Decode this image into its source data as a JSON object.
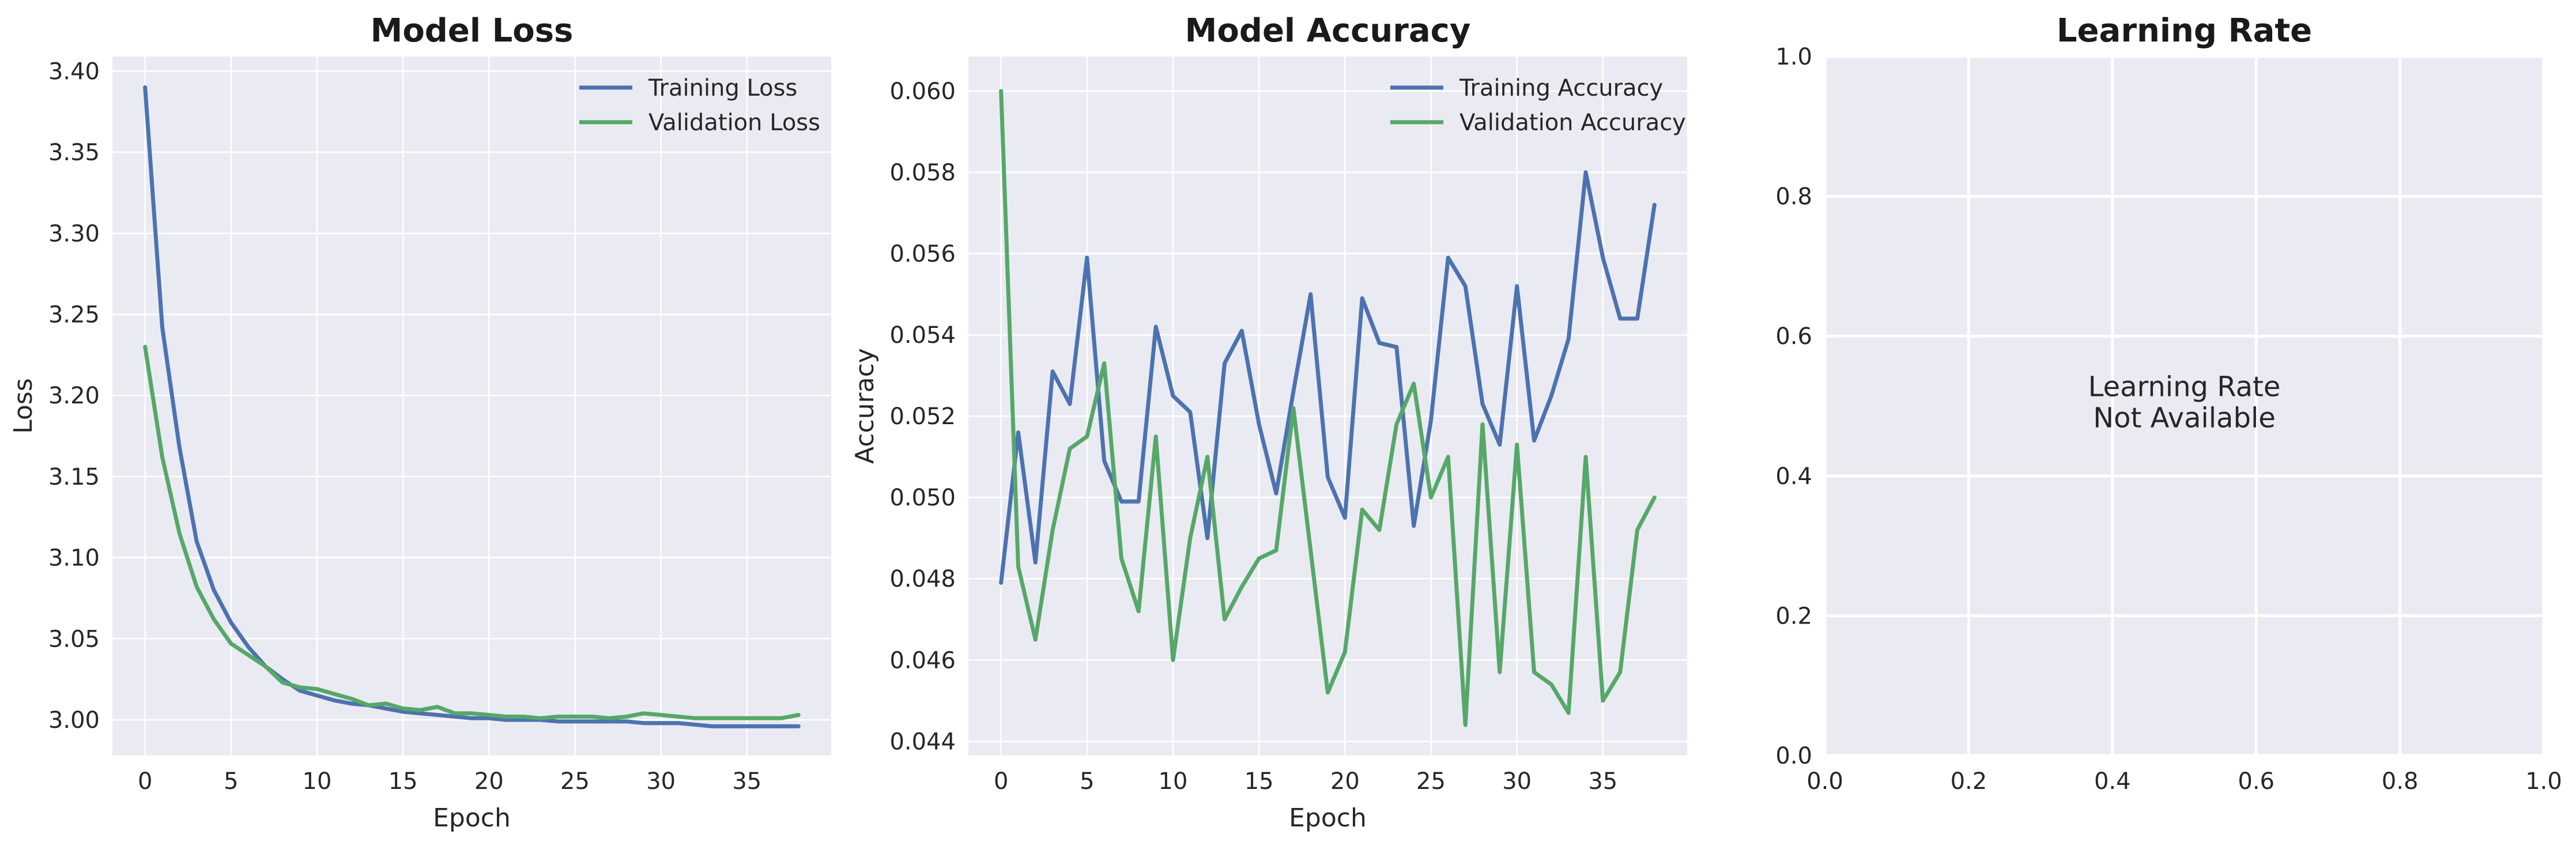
{
  "colors": {
    "axes_bg": "#EAEAF2",
    "grid": "#FFFFFF",
    "training": "#4C72B0",
    "validation": "#55A868"
  },
  "chart_data": [
    {
      "type": "line",
      "title": "Model Loss",
      "xlabel": "Epoch",
      "ylabel": "Loss",
      "xlim": [
        -1.9,
        39.9
      ],
      "ylim": [
        2.978,
        3.409
      ],
      "xticks": [
        0,
        5,
        10,
        15,
        20,
        25,
        30,
        35
      ],
      "yticks": [
        3.0,
        3.05,
        3.1,
        3.15,
        3.2,
        3.25,
        3.3,
        3.35,
        3.4
      ],
      "ytick_labels": [
        "3.00",
        "3.05",
        "3.10",
        "3.15",
        "3.20",
        "3.25",
        "3.30",
        "3.35",
        "3.40"
      ],
      "grid": true,
      "legend": "top-right",
      "series": [
        {
          "name": "Training Loss",
          "color": "#4C72B0",
          "values": [
            3.39,
            3.242,
            3.168,
            3.11,
            3.08,
            3.06,
            3.045,
            3.033,
            3.025,
            3.018,
            3.015,
            3.012,
            3.01,
            3.009,
            3.007,
            3.005,
            3.004,
            3.003,
            3.002,
            3.001,
            3.001,
            3.0,
            3.0,
            3.0,
            2.999,
            2.999,
            2.999,
            2.999,
            2.999,
            2.998,
            2.998,
            2.998,
            2.997,
            2.996,
            2.996,
            2.996,
            2.996,
            2.996,
            2.996
          ]
        },
        {
          "name": "Validation Loss",
          "color": "#55A868",
          "values": [
            3.23,
            3.162,
            3.115,
            3.082,
            3.062,
            3.047,
            3.04,
            3.033,
            3.023,
            3.02,
            3.019,
            3.016,
            3.013,
            3.009,
            3.01,
            3.007,
            3.006,
            3.008,
            3.004,
            3.004,
            3.003,
            3.002,
            3.002,
            3.001,
            3.002,
            3.002,
            3.002,
            3.001,
            3.002,
            3.004,
            3.003,
            3.002,
            3.001,
            3.001,
            3.001,
            3.001,
            3.001,
            3.001,
            3.003
          ]
        }
      ]
    },
    {
      "type": "line",
      "title": "Model Accuracy",
      "xlabel": "Epoch",
      "ylabel": "Accuracy",
      "xlim": [
        -1.9,
        39.9
      ],
      "ylim": [
        0.04365,
        0.06085
      ],
      "xticks": [
        0,
        5,
        10,
        15,
        20,
        25,
        30,
        35
      ],
      "yticks": [
        0.044,
        0.046,
        0.048,
        0.05,
        0.052,
        0.054,
        0.056,
        0.058,
        0.06
      ],
      "ytick_labels": [
        "0.044",
        "0.046",
        "0.048",
        "0.050",
        "0.052",
        "0.054",
        "0.056",
        "0.058",
        "0.060"
      ],
      "grid": true,
      "legend": "top-right",
      "series": [
        {
          "name": "Training Accuracy",
          "color": "#4C72B0",
          "values": [
            0.0479,
            0.0516,
            0.0484,
            0.0531,
            0.0523,
            0.0559,
            0.0509,
            0.0499,
            0.0499,
            0.0542,
            0.0525,
            0.0521,
            0.049,
            0.0533,
            0.0541,
            0.0518,
            0.0501,
            0.0526,
            0.055,
            0.0505,
            0.0495,
            0.0549,
            0.0538,
            0.0537,
            0.0493,
            0.0519,
            0.0559,
            0.0552,
            0.0523,
            0.0513,
            0.0552,
            0.0514,
            0.0525,
            0.0539,
            0.058,
            0.0559,
            0.0544,
            0.0544,
            0.0572
          ]
        },
        {
          "name": "Validation Accuracy",
          "color": "#55A868",
          "values": [
            0.06,
            0.0483,
            0.0465,
            0.0492,
            0.0512,
            0.0515,
            0.0533,
            0.0485,
            0.0472,
            0.0515,
            0.046,
            0.049,
            0.051,
            0.047,
            0.0478,
            0.0485,
            0.0487,
            0.0522,
            0.0487,
            0.0452,
            0.0462,
            0.0497,
            0.0492,
            0.0518,
            0.0528,
            0.05,
            0.051,
            0.0444,
            0.0518,
            0.0457,
            0.0513,
            0.0457,
            0.0454,
            0.0447,
            0.051,
            0.045,
            0.0457,
            0.0492,
            0.05
          ]
        }
      ]
    },
    {
      "type": "line",
      "title": "Learning Rate",
      "annotation": "Learning Rate\nNot Available",
      "xlim": [
        0,
        1
      ],
      "ylim": [
        0,
        1
      ],
      "xticks": [
        0.0,
        0.2,
        0.4,
        0.6,
        0.8,
        1.0
      ],
      "yticks": [
        0.0,
        0.2,
        0.4,
        0.6,
        0.8,
        1.0
      ],
      "xtick_labels": [
        "0.0",
        "0.2",
        "0.4",
        "0.6",
        "0.8",
        "1.0"
      ],
      "ytick_labels": [
        "0.0",
        "0.2",
        "0.4",
        "0.6",
        "0.8",
        "1.0"
      ],
      "grid": true,
      "series": []
    }
  ]
}
